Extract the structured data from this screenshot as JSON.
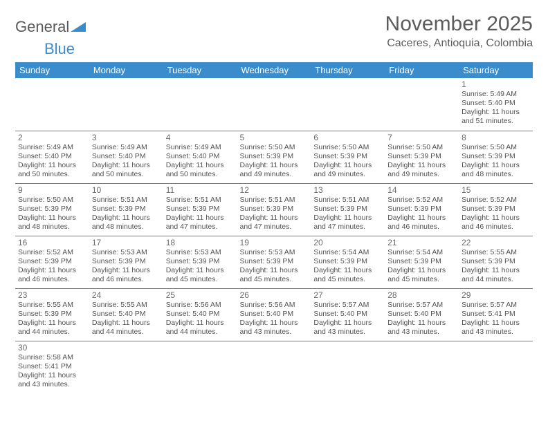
{
  "logo": {
    "text_a": "General",
    "text_b": "Blue"
  },
  "title": "November 2025",
  "location": "Caceres, Antioquia, Colombia",
  "colors": {
    "header_bg": "#3b8ccb",
    "header_fg": "#ffffff",
    "border": "#3b8ccb",
    "text": "#525252",
    "title": "#5c5c5c",
    "daynum": "#6a6a6a",
    "background": "#ffffff"
  },
  "font": {
    "family": "Arial",
    "title_size": 30,
    "sub_size": 16,
    "header_size": 13,
    "body_size": 10.5
  },
  "day_names": [
    "Sunday",
    "Monday",
    "Tuesday",
    "Wednesday",
    "Thursday",
    "Friday",
    "Saturday"
  ],
  "first_weekday": 6,
  "days": {
    "1": {
      "sunrise": "5:49 AM",
      "sunset": "5:40 PM",
      "daylight": "11 hours and 51 minutes."
    },
    "2": {
      "sunrise": "5:49 AM",
      "sunset": "5:40 PM",
      "daylight": "11 hours and 50 minutes."
    },
    "3": {
      "sunrise": "5:49 AM",
      "sunset": "5:40 PM",
      "daylight": "11 hours and 50 minutes."
    },
    "4": {
      "sunrise": "5:49 AM",
      "sunset": "5:40 PM",
      "daylight": "11 hours and 50 minutes."
    },
    "5": {
      "sunrise": "5:50 AM",
      "sunset": "5:39 PM",
      "daylight": "11 hours and 49 minutes."
    },
    "6": {
      "sunrise": "5:50 AM",
      "sunset": "5:39 PM",
      "daylight": "11 hours and 49 minutes."
    },
    "7": {
      "sunrise": "5:50 AM",
      "sunset": "5:39 PM",
      "daylight": "11 hours and 49 minutes."
    },
    "8": {
      "sunrise": "5:50 AM",
      "sunset": "5:39 PM",
      "daylight": "11 hours and 48 minutes."
    },
    "9": {
      "sunrise": "5:50 AM",
      "sunset": "5:39 PM",
      "daylight": "11 hours and 48 minutes."
    },
    "10": {
      "sunrise": "5:51 AM",
      "sunset": "5:39 PM",
      "daylight": "11 hours and 48 minutes."
    },
    "11": {
      "sunrise": "5:51 AM",
      "sunset": "5:39 PM",
      "daylight": "11 hours and 47 minutes."
    },
    "12": {
      "sunrise": "5:51 AM",
      "sunset": "5:39 PM",
      "daylight": "11 hours and 47 minutes."
    },
    "13": {
      "sunrise": "5:51 AM",
      "sunset": "5:39 PM",
      "daylight": "11 hours and 47 minutes."
    },
    "14": {
      "sunrise": "5:52 AM",
      "sunset": "5:39 PM",
      "daylight": "11 hours and 46 minutes."
    },
    "15": {
      "sunrise": "5:52 AM",
      "sunset": "5:39 PM",
      "daylight": "11 hours and 46 minutes."
    },
    "16": {
      "sunrise": "5:52 AM",
      "sunset": "5:39 PM",
      "daylight": "11 hours and 46 minutes."
    },
    "17": {
      "sunrise": "5:53 AM",
      "sunset": "5:39 PM",
      "daylight": "11 hours and 46 minutes."
    },
    "18": {
      "sunrise": "5:53 AM",
      "sunset": "5:39 PM",
      "daylight": "11 hours and 45 minutes."
    },
    "19": {
      "sunrise": "5:53 AM",
      "sunset": "5:39 PM",
      "daylight": "11 hours and 45 minutes."
    },
    "20": {
      "sunrise": "5:54 AM",
      "sunset": "5:39 PM",
      "daylight": "11 hours and 45 minutes."
    },
    "21": {
      "sunrise": "5:54 AM",
      "sunset": "5:39 PM",
      "daylight": "11 hours and 45 minutes."
    },
    "22": {
      "sunrise": "5:55 AM",
      "sunset": "5:39 PM",
      "daylight": "11 hours and 44 minutes."
    },
    "23": {
      "sunrise": "5:55 AM",
      "sunset": "5:39 PM",
      "daylight": "11 hours and 44 minutes."
    },
    "24": {
      "sunrise": "5:55 AM",
      "sunset": "5:40 PM",
      "daylight": "11 hours and 44 minutes."
    },
    "25": {
      "sunrise": "5:56 AM",
      "sunset": "5:40 PM",
      "daylight": "11 hours and 44 minutes."
    },
    "26": {
      "sunrise": "5:56 AM",
      "sunset": "5:40 PM",
      "daylight": "11 hours and 43 minutes."
    },
    "27": {
      "sunrise": "5:57 AM",
      "sunset": "5:40 PM",
      "daylight": "11 hours and 43 minutes."
    },
    "28": {
      "sunrise": "5:57 AM",
      "sunset": "5:40 PM",
      "daylight": "11 hours and 43 minutes."
    },
    "29": {
      "sunrise": "5:57 AM",
      "sunset": "5:41 PM",
      "daylight": "11 hours and 43 minutes."
    },
    "30": {
      "sunrise": "5:58 AM",
      "sunset": "5:41 PM",
      "daylight": "11 hours and 43 minutes."
    }
  },
  "labels": {
    "sunrise": "Sunrise:",
    "sunset": "Sunset:",
    "daylight": "Daylight:"
  }
}
